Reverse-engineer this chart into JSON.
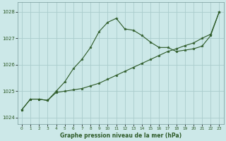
{
  "xlabel": "Graphe pression niveau de la mer (hPa)",
  "bg_color": "#cce8e8",
  "grid_color": "#aacccc",
  "line_color": "#2d5a27",
  "xlim": [
    -0.5,
    23.5
  ],
  "ylim": [
    1023.75,
    1028.35
  ],
  "yticks": [
    1024,
    1025,
    1026,
    1027,
    1028
  ],
  "xticks": [
    0,
    1,
    2,
    3,
    4,
    5,
    6,
    7,
    8,
    9,
    10,
    11,
    12,
    13,
    14,
    15,
    16,
    17,
    18,
    19,
    20,
    21,
    22,
    23
  ],
  "line1_x": [
    0,
    1,
    2,
    3,
    4,
    5,
    6,
    7,
    8,
    9,
    10,
    11,
    12,
    13,
    14,
    15,
    16,
    17,
    18,
    19,
    20,
    21,
    22,
    23
  ],
  "line1_y": [
    1024.3,
    1024.7,
    1024.7,
    1024.65,
    1025.0,
    1025.35,
    1025.85,
    1026.2,
    1026.65,
    1027.25,
    1027.6,
    1027.75,
    1027.35,
    1027.3,
    1027.1,
    1026.85,
    1026.65,
    1026.65,
    1026.5,
    1026.55,
    1026.6,
    1026.7,
    1027.1,
    1028.0
  ],
  "line2_x": [
    0,
    1,
    2,
    3,
    4,
    5,
    6,
    7,
    8,
    9,
    10,
    11,
    12,
    13,
    14,
    15,
    16,
    17,
    18,
    19,
    20,
    21,
    22,
    23
  ],
  "line2_y": [
    1024.3,
    1024.7,
    1024.7,
    1024.65,
    1024.95,
    1025.0,
    1025.05,
    1025.1,
    1025.2,
    1025.3,
    1025.45,
    1025.6,
    1025.75,
    1025.9,
    1026.05,
    1026.2,
    1026.35,
    1026.5,
    1026.6,
    1026.72,
    1026.82,
    1027.0,
    1027.15,
    1028.0
  ]
}
